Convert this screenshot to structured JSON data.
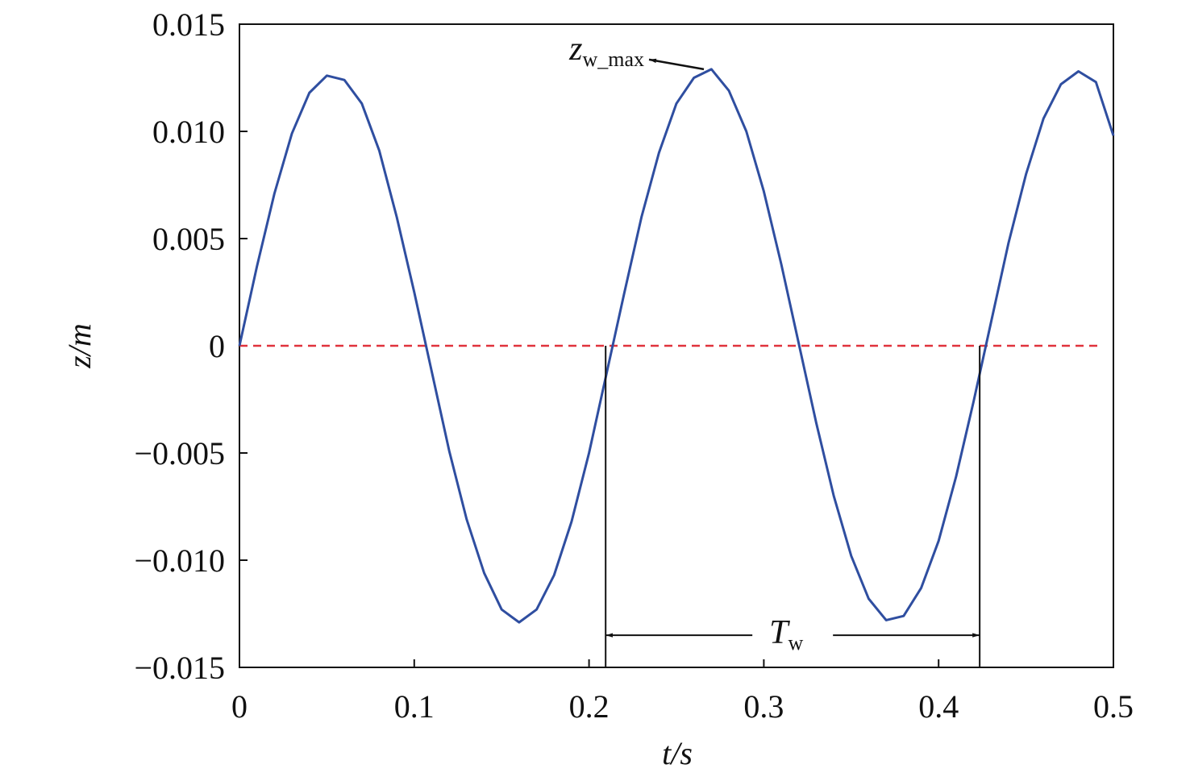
{
  "chart_data": {
    "type": "line",
    "xlabel": "t/s",
    "ylabel": "z/m",
    "xlim": [
      0,
      0.5
    ],
    "xticks": [
      0,
      0.1,
      0.2,
      0.3,
      0.4,
      0.5
    ],
    "ylim": [
      -0.015,
      0.015
    ],
    "yticks": [
      {
        "value": -0.015,
        "label": "−0.015"
      },
      {
        "value": -0.01,
        "label": "−0.010"
      },
      {
        "value": -0.005,
        "label": "−0.005"
      },
      0,
      0.005,
      {
        "value": 0.01,
        "label": "0.010"
      },
      0.015
    ],
    "x": [
      0,
      0.01,
      0.02,
      0.03,
      0.04,
      0.05,
      0.06,
      0.07,
      0.08,
      0.09,
      0.1,
      0.11,
      0.12,
      0.13,
      0.14,
      0.15,
      0.16,
      0.17,
      0.18,
      0.19,
      0.2,
      0.21,
      0.22,
      0.23,
      0.24,
      0.25,
      0.26,
      0.27,
      0.28,
      0.29,
      0.3,
      0.31,
      0.32,
      0.33,
      0.34,
      0.35,
      0.36,
      0.37,
      0.38,
      0.39,
      0.4,
      0.41,
      0.42,
      0.43,
      0.44,
      0.45,
      0.46,
      0.47,
      0.48,
      0.49,
      0.5
    ],
    "series": [
      {
        "color": "#2f4ea0",
        "values": [
          0,
          0.0037,
          0.0071,
          0.0099,
          0.0118,
          0.0126,
          0.0124,
          0.0113,
          0.0091,
          0.006,
          0.0025,
          -0.0012,
          -0.0049,
          -0.0081,
          -0.0106,
          -0.0123,
          -0.0129,
          -0.0123,
          -0.0107,
          -0.0082,
          -0.005,
          -0.0013,
          0.0024,
          0.006,
          0.009,
          0.0113,
          0.0125,
          0.0129,
          0.0119,
          0.01,
          0.0072,
          0.0038,
          0.0001,
          -0.0036,
          -0.007,
          -0.0098,
          -0.0118,
          -0.0128,
          -0.0126,
          -0.0113,
          -0.0091,
          -0.0061,
          -0.0026,
          0.0011,
          0.0048,
          0.008,
          0.0106,
          0.0122,
          0.0128,
          0.0123,
          0.0098
        ]
      }
    ],
    "reference_line": {
      "y": 0,
      "color": "#e0333c"
    },
    "annotations": [
      {
        "text": "z",
        "subscript": "w_max",
        "x": 0.262,
        "y": 0.0129
      },
      {
        "text": "T",
        "subscript": "w",
        "x": [
          0.2095,
          0.4235
        ],
        "y": -0.0135
      }
    ]
  }
}
